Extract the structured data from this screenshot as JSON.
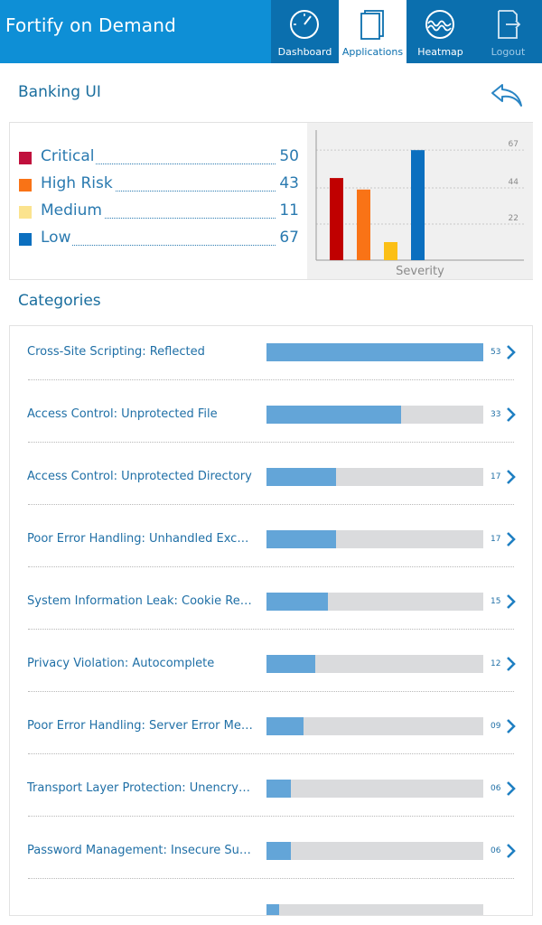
{
  "header": {
    "app_title": "Fortify on Demand",
    "nav": [
      {
        "label": "Dashboard",
        "icon": "dashboard-gauge-icon"
      },
      {
        "label": "Applications",
        "icon": "applications-pages-icon"
      },
      {
        "label": "Heatmap",
        "icon": "heatmap-wave-icon"
      },
      {
        "label": "Logout",
        "icon": "logout-icon"
      }
    ],
    "active_nav": "Applications"
  },
  "page": {
    "title": "Banking UI",
    "back_icon": "back-arrow-icon"
  },
  "summary": {
    "legend": [
      {
        "label": "Critical",
        "value": "50",
        "color": "#c0103c"
      },
      {
        "label": "High Risk",
        "value": "43",
        "color": "#f97316"
      },
      {
        "label": "Medium",
        "value": "11",
        "color": "#fbe38e"
      },
      {
        "label": "Low",
        "value": "67",
        "color": "#0b6fbf"
      }
    ]
  },
  "chart_data": {
    "type": "bar",
    "categories": [
      "Critical",
      "High Risk",
      "Medium",
      "Low"
    ],
    "values": [
      50,
      43,
      11,
      67
    ],
    "colors": [
      "#c00000",
      "#f97316",
      "#fbbf16",
      "#0b6fbf"
    ],
    "xlabel": "Severity",
    "ylabel": "",
    "yticks": [
      22,
      44,
      67
    ],
    "ylim": [
      0,
      77
    ],
    "grid": true
  },
  "categories_section": {
    "title": "Categories",
    "max_value": 53,
    "items": [
      {
        "name": "Cross-Site Scripting: Reflected",
        "count": "53",
        "value": 53
      },
      {
        "name": "Access Control: Unprotected File",
        "count": "33",
        "value": 33
      },
      {
        "name": "Access Control: Unprotected Directory",
        "count": "17",
        "value": 17
      },
      {
        "name": "Poor Error Handling: Unhandled Excep...",
        "count": "17",
        "value": 17
      },
      {
        "name": "System Information Leak: Cookie Retri...",
        "count": "15",
        "value": 15
      },
      {
        "name": "Privacy Violation: Autocomplete",
        "count": "12",
        "value": 12
      },
      {
        "name": "Poor Error Handling: Server Error Mes...",
        "count": "09",
        "value": 9
      },
      {
        "name": "Transport Layer Protection: Unencryp...",
        "count": "06",
        "value": 6
      },
      {
        "name": "Password Management: Insecure Sub...",
        "count": "06",
        "value": 6
      },
      {
        "name": "",
        "count": "",
        "value": 3
      }
    ]
  }
}
